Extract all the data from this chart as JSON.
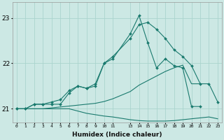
{
  "xlabel": "Humidex (Indice chaleur)",
  "background_color": "#cce8e4",
  "grid_color": "#aad4ce",
  "line_color": "#1a7a6e",
  "x_values": [
    0,
    1,
    2,
    3,
    4,
    5,
    6,
    7,
    8,
    9,
    10,
    11,
    13,
    14,
    15,
    16,
    17,
    18,
    19,
    20,
    21,
    22,
    23
  ],
  "ylim": [
    20.7,
    23.35
  ],
  "yticks": [
    21,
    22,
    23
  ],
  "line1_x": [
    0,
    1,
    2,
    3,
    4,
    5,
    6,
    7,
    8,
    9,
    10,
    11,
    13,
    14,
    15,
    16,
    17,
    18,
    19,
    20,
    21,
    22,
    23
  ],
  "line1_y": [
    21.0,
    21.0,
    21.1,
    21.1,
    21.15,
    21.2,
    21.4,
    21.5,
    21.45,
    21.55,
    22.0,
    22.15,
    22.55,
    22.85,
    22.9,
    22.75,
    22.55,
    22.3,
    22.15,
    21.95,
    21.55,
    21.55,
    21.15
  ],
  "line2_x": [
    0,
    1,
    2,
    3,
    4,
    5,
    6,
    7,
    8,
    9,
    10,
    11,
    13,
    14,
    15,
    16,
    17,
    18,
    19,
    20,
    21
  ],
  "line2_y": [
    21.0,
    21.0,
    21.1,
    21.1,
    21.1,
    21.1,
    21.35,
    21.5,
    21.45,
    21.5,
    22.0,
    22.1,
    22.65,
    23.05,
    22.45,
    21.9,
    22.1,
    21.95,
    21.9,
    21.05,
    21.05
  ],
  "line3_x": [
    0,
    1,
    2,
    3,
    4,
    5,
    6,
    7,
    8,
    9,
    10,
    11,
    13,
    14,
    15,
    16,
    17,
    18,
    19,
    20,
    21
  ],
  "line3_y": [
    21.0,
    21.0,
    21.0,
    21.0,
    21.02,
    21.04,
    21.06,
    21.08,
    21.1,
    21.12,
    21.16,
    21.22,
    21.38,
    21.52,
    21.62,
    21.72,
    21.82,
    21.9,
    21.96,
    21.55,
    21.55
  ],
  "line4_x": [
    0,
    1,
    2,
    3,
    4,
    5,
    6,
    7,
    8,
    9,
    10,
    11,
    13,
    14,
    15,
    16,
    17,
    18,
    19,
    20,
    21,
    22,
    23
  ],
  "line4_y": [
    21.0,
    21.0,
    21.0,
    21.0,
    21.0,
    21.0,
    21.0,
    20.95,
    20.9,
    20.87,
    20.84,
    20.82,
    20.76,
    20.74,
    20.73,
    20.73,
    20.73,
    20.74,
    20.76,
    20.78,
    20.8,
    20.82,
    20.78
  ]
}
